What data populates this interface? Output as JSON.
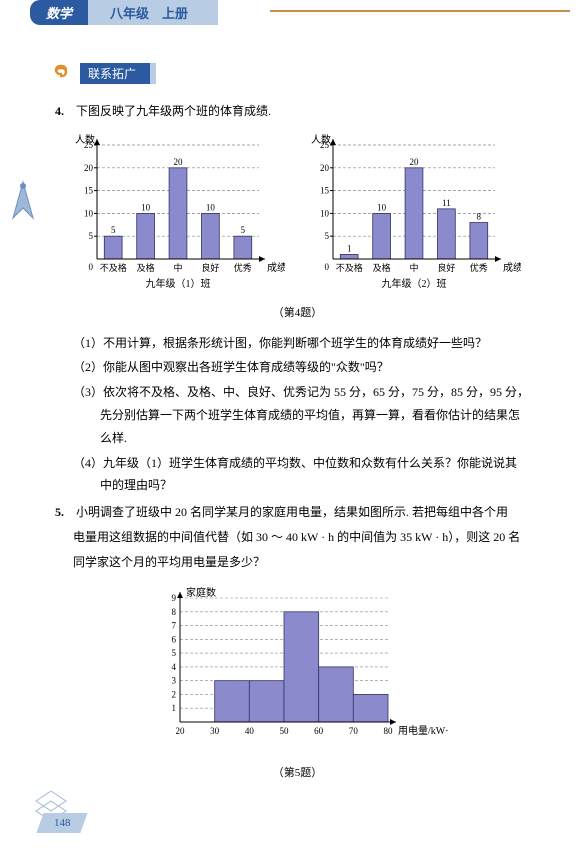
{
  "header": {
    "subject": "数学",
    "grade": "八年级　上册"
  },
  "section": {
    "label": "联系拓广"
  },
  "q4": {
    "num": "4.",
    "text": "下图反映了九年级两个班的体育成绩.",
    "caption": "（第4题）",
    "sub1": "（1）不用计算，根据条形统计图，你能判断哪个班学生的体育成绩好一些吗？",
    "sub2": "（2）你能从图中观察出各班学生体育成绩等级的\"众数\"吗？",
    "sub3a": "（3）依次将不及格、及格、中、良好、优秀记为 55 分，65 分，75 分，85 分，95 分，",
    "sub3b": "先分别估算一下两个班学生体育成绩的平均值，再算一算，看看你估计的结果怎",
    "sub3c": "么样.",
    "sub4a": "（4）九年级（1）班学生体育成绩的平均数、中位数和众数有什么关系？你能说说其",
    "sub4b": "中的理由吗？"
  },
  "q5": {
    "num": "5.",
    "line1": "小明调查了班级中 20 名同学某月的家庭用电量，结果如图所示. 若把每组中各个用",
    "line2": "电量用这组数据的中间值代替（如 30 ～ 40 kW · h 的中间值为 35 kW · h），则这 20 名",
    "line3": "同学家这个月的平均用电量是多少？",
    "caption": "（第5题）"
  },
  "chart1": {
    "type": "bar",
    "ylabel": "人数",
    "xlabel": "成绩",
    "subtitle": "九年级（1）班",
    "categories": [
      "不及格",
      "及格",
      "中",
      "良好",
      "优秀"
    ],
    "values": [
      5,
      10,
      20,
      10,
      5
    ],
    "value_labels": [
      "5",
      "10",
      "20",
      "10",
      "5"
    ],
    "ymax": 25,
    "ytick_step": 5,
    "bar_color": "#8a8acc",
    "bar_border": "#333366",
    "axis_color": "#000000",
    "grid_color": "#888888",
    "label_fontsize": 9
  },
  "chart2": {
    "type": "bar",
    "ylabel": "人数",
    "xlabel": "成绩",
    "subtitle": "九年级（2）班",
    "categories": [
      "不及格",
      "及格",
      "中",
      "良好",
      "优秀"
    ],
    "values": [
      1,
      10,
      20,
      11,
      8
    ],
    "value_labels": [
      "1",
      "10",
      "20",
      "11",
      "8"
    ],
    "ymax": 25,
    "ytick_step": 5,
    "bar_color": "#8a8acc",
    "bar_border": "#333366",
    "axis_color": "#000000",
    "grid_color": "#888888",
    "label_fontsize": 9
  },
  "chart3": {
    "type": "histogram",
    "ylabel": "家庭数",
    "xlabel": "用电量/kW·h",
    "bin_edges": [
      20,
      30,
      40,
      50,
      60,
      70,
      80
    ],
    "values": [
      0,
      3,
      3,
      8,
      4,
      2
    ],
    "ymax": 9,
    "ytick_step": 1,
    "bar_color": "#8a8acc",
    "bar_border": "#333366",
    "axis_color": "#000000",
    "grid_color": "#888888",
    "label_fontsize": 9
  },
  "page_number": "148"
}
